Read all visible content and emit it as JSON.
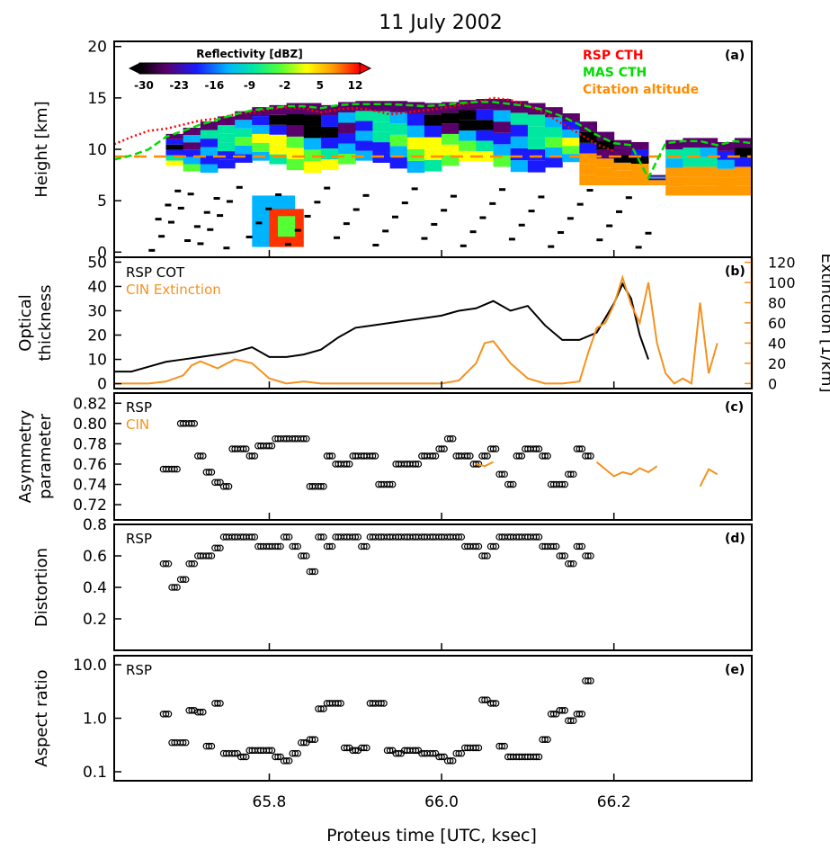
{
  "figure_title": "11 July 2002",
  "x_axis": {
    "label": "Proteus time [UTC, ksec]",
    "range": [
      65.62,
      66.36
    ],
    "ticks": [
      65.8,
      66.0,
      66.2
    ],
    "tick_labels": [
      "65.8",
      "66.0",
      "66.2"
    ]
  },
  "colors": {
    "rsp_cth": "#ff0000",
    "mas_cth": "#00dd00",
    "citation": "#ff8c00",
    "rsp": "#000000",
    "cin": "#f5911e"
  },
  "chart_data": [
    {
      "panel": "a",
      "type": "heatmap",
      "panel_label": "(a)",
      "ylabel": "Height [km]",
      "ylim": [
        -0.5,
        20.5
      ],
      "yticks": [
        0,
        5,
        10,
        15,
        20
      ],
      "colorbar": {
        "title": "Reflectivity [dBZ]",
        "range": [
          -30,
          12
        ],
        "tick_labels": [
          "-30",
          "-23",
          "-16",
          "-9",
          "-2",
          "5",
          "12"
        ]
      },
      "legend": [
        "RSP CTH",
        "MAS CTH",
        "Citation altitude"
      ],
      "citation_altitude_km": 9.3,
      "series": [
        {
          "name": "RSP CTH",
          "x": [
            65.62,
            65.64,
            65.66,
            65.68,
            65.7,
            65.72,
            65.74,
            65.76,
            65.78,
            65.8,
            65.82,
            65.84,
            65.86,
            65.88,
            65.9,
            65.92,
            65.94,
            65.96,
            65.98,
            66.0,
            66.02,
            66.04,
            66.06,
            66.08,
            66.1,
            66.12,
            66.14,
            66.16,
            66.18,
            66.2
          ],
          "y": [
            10.5,
            11.2,
            11.8,
            12.0,
            12.4,
            12.8,
            13.0,
            13.4,
            13.6,
            13.9,
            14.1,
            14.0,
            13.6,
            13.9,
            14.0,
            13.8,
            13.4,
            13.6,
            13.8,
            14.0,
            14.3,
            14.6,
            15.0,
            14.8,
            14.3,
            13.5,
            12.5,
            11.5,
            10.5,
            9.8
          ]
        },
        {
          "name": "MAS CTH",
          "x": [
            65.62,
            65.64,
            65.66,
            65.68,
            65.7,
            65.72,
            65.74,
            65.76,
            65.78,
            65.8,
            65.82,
            65.84,
            65.86,
            65.88,
            65.9,
            65.92,
            65.94,
            65.96,
            65.98,
            66.0,
            66.02,
            66.04,
            66.06,
            66.08,
            66.1,
            66.12,
            66.14,
            66.16,
            66.18,
            66.2,
            66.22,
            66.24,
            66.26,
            66.28,
            66.3,
            66.32,
            66.34,
            66.36
          ],
          "y": [
            9.0,
            9.4,
            10.0,
            11.2,
            11.8,
            12.4,
            12.9,
            13.4,
            13.8,
            14.0,
            14.2,
            14.2,
            14.0,
            14.3,
            14.4,
            14.4,
            14.4,
            14.3,
            14.2,
            14.3,
            14.5,
            14.6,
            14.6,
            14.4,
            14.2,
            13.8,
            13.2,
            12.4,
            11.4,
            10.6,
            10.4,
            7.2,
            10.6,
            10.8,
            10.8,
            10.4,
            10.8,
            10.6
          ]
        }
      ]
    },
    {
      "panel": "b",
      "type": "line",
      "panel_label": "(b)",
      "ylabel": "Optical thickness",
      "ylim": [
        -2,
        52
      ],
      "yticks": [
        0,
        10,
        20,
        30,
        40,
        50
      ],
      "y2label": "Extinction [1/km]",
      "y2lim": [
        -5,
        125
      ],
      "y2ticks": [
        0,
        20,
        40,
        60,
        80,
        100,
        120
      ],
      "legend": [
        "RSP COT",
        "CIN Extinction"
      ],
      "series": [
        {
          "name": "RSP COT",
          "axis": "left",
          "x": [
            65.62,
            65.64,
            65.66,
            65.68,
            65.7,
            65.72,
            65.74,
            65.76,
            65.78,
            65.8,
            65.82,
            65.84,
            65.86,
            65.88,
            65.9,
            65.92,
            65.94,
            65.96,
            65.98,
            66.0,
            66.02,
            66.04,
            66.06,
            66.08,
            66.1,
            66.12,
            66.14,
            66.16,
            66.18,
            66.2,
            66.21,
            66.22,
            66.23,
            66.24
          ],
          "y": [
            5,
            5,
            7,
            9,
            10,
            11,
            12,
            13,
            15,
            11,
            11,
            12,
            14,
            19,
            23,
            24,
            25,
            26,
            27,
            28,
            30,
            31,
            34,
            30,
            32,
            24,
            18,
            18,
            21,
            33,
            41,
            35,
            20,
            10
          ]
        },
        {
          "name": "CIN Extinction",
          "axis": "right",
          "x": [
            65.62,
            65.64,
            65.66,
            65.68,
            65.7,
            65.71,
            65.72,
            65.74,
            65.76,
            65.78,
            65.8,
            65.82,
            65.84,
            65.86,
            65.88,
            65.9,
            65.92,
            65.94,
            65.96,
            65.98,
            66.0,
            66.02,
            66.04,
            66.05,
            66.06,
            66.08,
            66.1,
            66.12,
            66.14,
            66.16,
            66.17,
            66.18,
            66.19,
            66.2,
            66.21,
            66.22,
            66.23,
            66.24,
            66.25,
            66.26,
            66.27,
            66.28,
            66.29,
            66.3,
            66.31,
            66.32
          ],
          "y": [
            0,
            0,
            0,
            2,
            8,
            18,
            22,
            15,
            24,
            20,
            5,
            0,
            2,
            0,
            0,
            0,
            0,
            0,
            0,
            0,
            0,
            3,
            20,
            40,
            42,
            20,
            5,
            0,
            0,
            2,
            30,
            55,
            60,
            78,
            105,
            78,
            60,
            100,
            40,
            10,
            0,
            5,
            0,
            80,
            10,
            40
          ]
        }
      ]
    },
    {
      "panel": "c",
      "type": "scatter",
      "panel_label": "(c)",
      "ylabel": "Asymmetry parameter",
      "ylim": [
        0.705,
        0.83
      ],
      "yticks": [
        0.72,
        0.74,
        0.76,
        0.78,
        0.8,
        0.82
      ],
      "ytick_labels": [
        "0.72",
        "0.74",
        "0.76",
        "0.78",
        "0.80",
        "0.82"
      ],
      "legend": [
        "RSP",
        "CIN"
      ],
      "series": [
        {
          "name": "RSP",
          "x": [
            65.68,
            65.69,
            65.7,
            65.71,
            65.72,
            65.73,
            65.74,
            65.75,
            65.76,
            65.77,
            65.78,
            65.79,
            65.8,
            65.81,
            65.82,
            65.83,
            65.84,
            65.85,
            65.86,
            65.87,
            65.88,
            65.89,
            65.9,
            65.91,
            65.92,
            65.93,
            65.94,
            65.95,
            65.96,
            65.97,
            65.98,
            65.99,
            66.0,
            66.01,
            66.02,
            66.03,
            66.04,
            66.05,
            66.06,
            66.07,
            66.08,
            66.09,
            66.1,
            66.11,
            66.12,
            66.13,
            66.14,
            66.15,
            66.16,
            66.17
          ],
          "y": [
            0.755,
            0.755,
            0.8,
            0.8,
            0.768,
            0.752,
            0.742,
            0.738,
            0.775,
            0.775,
            0.768,
            0.778,
            0.778,
            0.785,
            0.785,
            0.785,
            0.785,
            0.738,
            0.738,
            0.768,
            0.76,
            0.76,
            0.768,
            0.768,
            0.768,
            0.74,
            0.74,
            0.76,
            0.76,
            0.76,
            0.768,
            0.768,
            0.775,
            0.785,
            0.768,
            0.768,
            0.76,
            0.768,
            0.775,
            0.75,
            0.74,
            0.768,
            0.775,
            0.775,
            0.768,
            0.74,
            0.74,
            0.75,
            0.775,
            0.768
          ]
        },
        {
          "name": "CIN",
          "x": [
            66.04,
            66.05,
            66.06,
            66.18,
            66.19,
            66.2,
            66.21,
            66.22,
            66.23,
            66.24,
            66.25,
            66.3,
            66.31,
            66.32
          ],
          "y": [
            0.76,
            0.758,
            0.762,
            0.762,
            0.755,
            0.748,
            0.752,
            0.75,
            0.756,
            0.752,
            0.758,
            0.738,
            0.755,
            0.75
          ]
        }
      ]
    },
    {
      "panel": "d",
      "type": "scatter",
      "panel_label": "(d)",
      "ylabel": "Distortion",
      "ylim": [
        0.0,
        0.8
      ],
      "yticks": [
        0.2,
        0.4,
        0.6,
        0.8
      ],
      "ytick_labels": [
        "0.2",
        "0.4",
        "0.6",
        "0.8"
      ],
      "legend": [
        "RSP"
      ],
      "series": [
        {
          "name": "RSP",
          "x": [
            65.68,
            65.69,
            65.7,
            65.71,
            65.72,
            65.73,
            65.74,
            65.75,
            65.76,
            65.77,
            65.78,
            65.79,
            65.8,
            65.81,
            65.82,
            65.83,
            65.84,
            65.85,
            65.86,
            65.87,
            65.88,
            65.89,
            65.9,
            65.91,
            65.92,
            65.93,
            65.94,
            65.95,
            65.96,
            65.97,
            65.98,
            65.99,
            66.0,
            66.01,
            66.02,
            66.03,
            66.04,
            66.05,
            66.06,
            66.07,
            66.08,
            66.09,
            66.1,
            66.11,
            66.12,
            66.13,
            66.14,
            66.15,
            66.16,
            66.17
          ],
          "y": [
            0.55,
            0.4,
            0.45,
            0.55,
            0.6,
            0.6,
            0.65,
            0.72,
            0.72,
            0.72,
            0.72,
            0.66,
            0.66,
            0.66,
            0.72,
            0.66,
            0.6,
            0.5,
            0.72,
            0.66,
            0.72,
            0.72,
            0.72,
            0.66,
            0.72,
            0.72,
            0.72,
            0.72,
            0.72,
            0.72,
            0.72,
            0.72,
            0.72,
            0.72,
            0.72,
            0.66,
            0.66,
            0.6,
            0.66,
            0.72,
            0.72,
            0.72,
            0.72,
            0.72,
            0.66,
            0.66,
            0.6,
            0.55,
            0.66,
            0.6
          ]
        }
      ]
    },
    {
      "panel": "e",
      "type": "scatter",
      "panel_label": "(e)",
      "ylabel": "Aspect ratio",
      "yscale": "log",
      "ylim": [
        0.1,
        10.0
      ],
      "yticks": [
        0.1,
        1.0,
        10.0
      ],
      "ytick_labels": [
        "0.1",
        "1.0",
        "10.0"
      ],
      "legend": [
        "RSP"
      ],
      "series": [
        {
          "name": "RSP",
          "x": [
            65.68,
            65.69,
            65.7,
            65.71,
            65.72,
            65.73,
            65.74,
            65.75,
            65.76,
            65.77,
            65.78,
            65.79,
            65.8,
            65.81,
            65.82,
            65.83,
            65.84,
            65.85,
            65.86,
            65.87,
            65.88,
            65.89,
            65.9,
            65.91,
            65.92,
            65.93,
            65.94,
            65.95,
            65.96,
            65.97,
            65.98,
            65.99,
            66.0,
            66.01,
            66.02,
            66.03,
            66.04,
            66.05,
            66.06,
            66.07,
            66.08,
            66.09,
            66.1,
            66.11,
            66.12,
            66.13,
            66.14,
            66.15,
            66.16,
            66.17
          ],
          "y": [
            1.2,
            0.35,
            0.35,
            1.4,
            1.3,
            0.3,
            1.9,
            0.22,
            0.22,
            0.19,
            0.25,
            0.25,
            0.25,
            0.19,
            0.16,
            0.22,
            0.35,
            0.4,
            1.5,
            1.9,
            1.9,
            0.28,
            0.25,
            0.28,
            1.9,
            1.9,
            0.25,
            0.22,
            0.25,
            0.25,
            0.22,
            0.22,
            0.19,
            0.16,
            0.22,
            0.28,
            0.28,
            2.2,
            1.9,
            0.3,
            0.19,
            0.19,
            0.19,
            0.19,
            0.4,
            1.2,
            1.4,
            0.9,
            1.2,
            5.0
          ]
        }
      ]
    }
  ]
}
